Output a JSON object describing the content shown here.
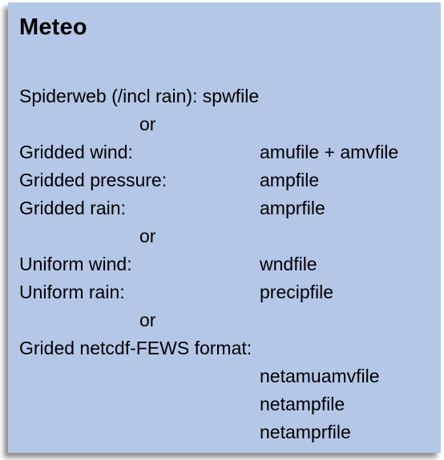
{
  "title": "Meteo",
  "rows": {
    "spiderweb": "Spiderweb (/incl rain): spwfile",
    "or1": "or",
    "gridded_wind_label": "Gridded wind:",
    "gridded_wind_value": "amufile + amvfile",
    "gridded_pressure_label": "Gridded pressure:",
    "gridded_pressure_value": "ampfile",
    "gridded_rain_label": "Gridded rain:",
    "gridded_rain_value": "amprfile",
    "or2": "or",
    "uniform_wind_label": "Uniform wind:",
    "uniform_wind_value": "wndfile",
    "uniform_rain_label": "Uniform rain:",
    "uniform_rain_value": "precipfile",
    "or3": "or",
    "netcdf_label": "Grided netcdf-FEWS format:",
    "netcdf_values": [
      "netamuamvfile",
      "netampfile",
      "netamprfile"
    ]
  },
  "colors": {
    "panel_background": "#b4c7e7",
    "text": "#000000"
  }
}
